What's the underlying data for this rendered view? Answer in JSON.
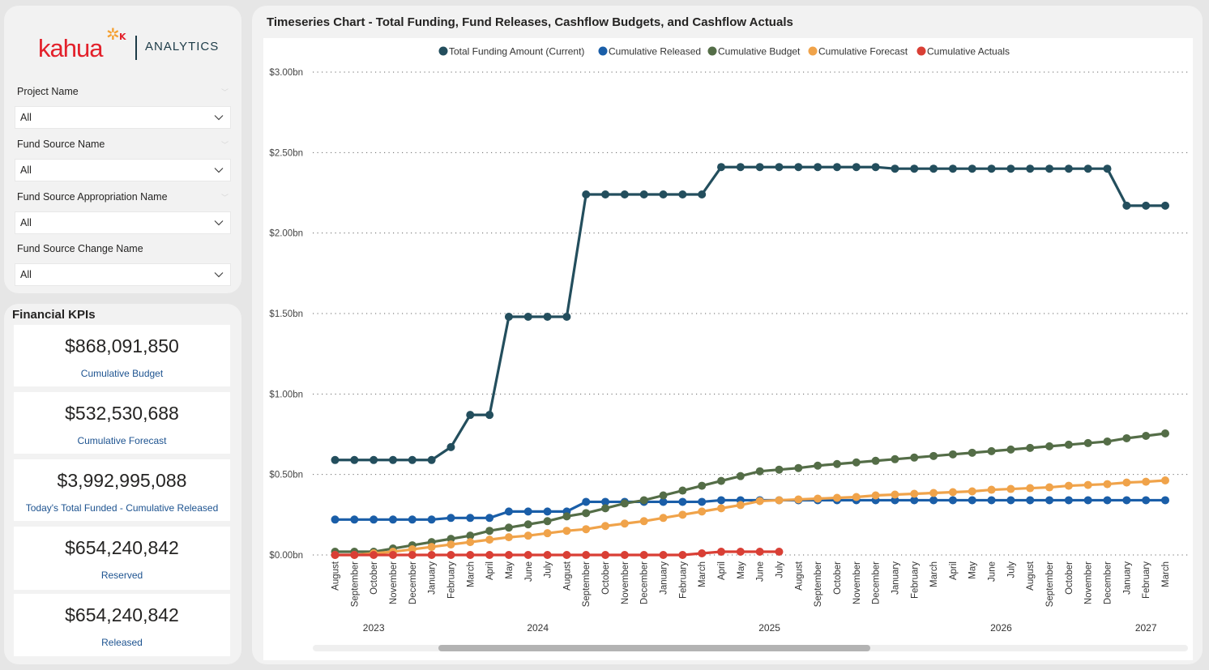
{
  "logo": {
    "brand": "kahua",
    "product": "ANALYTICS"
  },
  "filters": [
    {
      "label": "Project Name",
      "value": "All"
    },
    {
      "label": "Fund Source Name",
      "value": "All"
    },
    {
      "label": "Fund Source Appropriation Name",
      "value": "All"
    },
    {
      "label": "Fund Source Change Name",
      "value": "All"
    }
  ],
  "kpis": {
    "title": "Financial KPIs",
    "cards": [
      {
        "amount": "$868,091,850",
        "label": "Cumulative Budget"
      },
      {
        "amount": "$532,530,688",
        "label": "Cumulative Forecast"
      },
      {
        "amount": "$3,992,995,088",
        "label": "Today's Total Funded - Cumulative Released"
      },
      {
        "amount": "$654,240,842",
        "label": "Reserved"
      },
      {
        "amount": "$654,240,842",
        "label": "Released"
      }
    ]
  },
  "chart_data": {
    "type": "line",
    "title": "Timeseries Chart - Total Funding, Fund Releases, Cashflow Budgets, and Cashflow Actuals",
    "xlabel": "",
    "ylabel": "",
    "ylim": [
      0,
      3.0
    ],
    "y_unit": "bn",
    "y_ticks": [
      "$0.00bn",
      "$0.50bn",
      "$1.00bn",
      "$1.50bn",
      "$2.00bn",
      "$2.50bn",
      "$3.00bn"
    ],
    "y_tick_values": [
      0,
      0.5,
      1.0,
      1.5,
      2.0,
      2.5,
      3.0
    ],
    "grid": true,
    "legend_position": "top-center",
    "x": [
      "August",
      "September",
      "October",
      "November",
      "December",
      "January",
      "February",
      "March",
      "April",
      "May",
      "June",
      "July",
      "August",
      "September",
      "October",
      "November",
      "December",
      "January",
      "February",
      "March",
      "April",
      "May",
      "June",
      "July",
      "August",
      "September",
      "October",
      "November",
      "December",
      "January",
      "February",
      "March",
      "April",
      "May",
      "June",
      "July",
      "August",
      "September",
      "October",
      "November",
      "December",
      "January",
      "February",
      "March"
    ],
    "years": [
      {
        "label": "2023",
        "start": 0,
        "end": 4
      },
      {
        "label": "2024",
        "start": 5,
        "end": 16
      },
      {
        "label": "2025",
        "start": 17,
        "end": 28
      },
      {
        "label": "2026",
        "start": 29,
        "end": 40
      },
      {
        "label": "2027",
        "start": 41,
        "end": 43
      }
    ],
    "series": [
      {
        "name": "Total Funding Amount (Current)",
        "color": "#234e5d",
        "values": [
          0.59,
          0.59,
          0.59,
          0.59,
          0.59,
          0.59,
          0.67,
          0.87,
          0.87,
          1.48,
          1.48,
          1.48,
          1.48,
          2.24,
          2.24,
          2.24,
          2.24,
          2.24,
          2.24,
          2.24,
          2.41,
          2.41,
          2.41,
          2.41,
          2.41,
          2.41,
          2.41,
          2.41,
          2.41,
          2.4,
          2.4,
          2.4,
          2.4,
          2.4,
          2.4,
          2.4,
          2.4,
          2.4,
          2.4,
          2.4,
          2.4,
          2.17,
          2.17,
          2.17
        ]
      },
      {
        "name": "Cumulative Released",
        "color": "#1a5ea8",
        "values": [
          0.22,
          0.22,
          0.22,
          0.22,
          0.22,
          0.22,
          0.23,
          0.23,
          0.23,
          0.27,
          0.27,
          0.27,
          0.27,
          0.33,
          0.33,
          0.33,
          0.33,
          0.33,
          0.33,
          0.33,
          0.34,
          0.34,
          0.34,
          0.34,
          0.34,
          0.34,
          0.34,
          0.34,
          0.34,
          0.34,
          0.34,
          0.34,
          0.34,
          0.34,
          0.34,
          0.34,
          0.34,
          0.34,
          0.34,
          0.34,
          0.34,
          0.34,
          0.34,
          0.34
        ]
      },
      {
        "name": "Cumulative Budget",
        "color": "#546d47",
        "values": [
          0.02,
          0.02,
          0.02,
          0.04,
          0.06,
          0.08,
          0.1,
          0.12,
          0.15,
          0.17,
          0.19,
          0.21,
          0.24,
          0.26,
          0.29,
          0.32,
          0.34,
          0.37,
          0.4,
          0.43,
          0.46,
          0.49,
          0.52,
          0.53,
          0.54,
          0.555,
          0.565,
          0.575,
          0.585,
          0.595,
          0.605,
          0.615,
          0.625,
          0.635,
          0.645,
          0.655,
          0.665,
          0.675,
          0.685,
          0.695,
          0.705,
          0.725,
          0.74,
          0.755
        ]
      },
      {
        "name": "Cumulative Forecast",
        "color": "#f0a34a",
        "values": [
          0.0,
          0.0,
          0.01,
          0.02,
          0.035,
          0.05,
          0.065,
          0.08,
          0.095,
          0.11,
          0.12,
          0.135,
          0.15,
          0.16,
          0.18,
          0.195,
          0.21,
          0.23,
          0.25,
          0.27,
          0.29,
          0.31,
          0.335,
          0.34,
          0.345,
          0.35,
          0.355,
          0.36,
          0.37,
          0.375,
          0.38,
          0.385,
          0.39,
          0.395,
          0.405,
          0.41,
          0.415,
          0.42,
          0.43,
          0.435,
          0.44,
          0.45,
          0.455,
          0.463
        ]
      },
      {
        "name": "Cumulative Actuals",
        "color": "#d93f35",
        "values": [
          0.0,
          0.0,
          0.0,
          0.0,
          0.0,
          0.0,
          0.0,
          0.0,
          0.0,
          0.0,
          0.0,
          0.0,
          0.0,
          0.0,
          0.0,
          0.0,
          0.0,
          0.0,
          0.0,
          0.01,
          0.02,
          0.02,
          0.02,
          0.02
        ]
      }
    ]
  }
}
